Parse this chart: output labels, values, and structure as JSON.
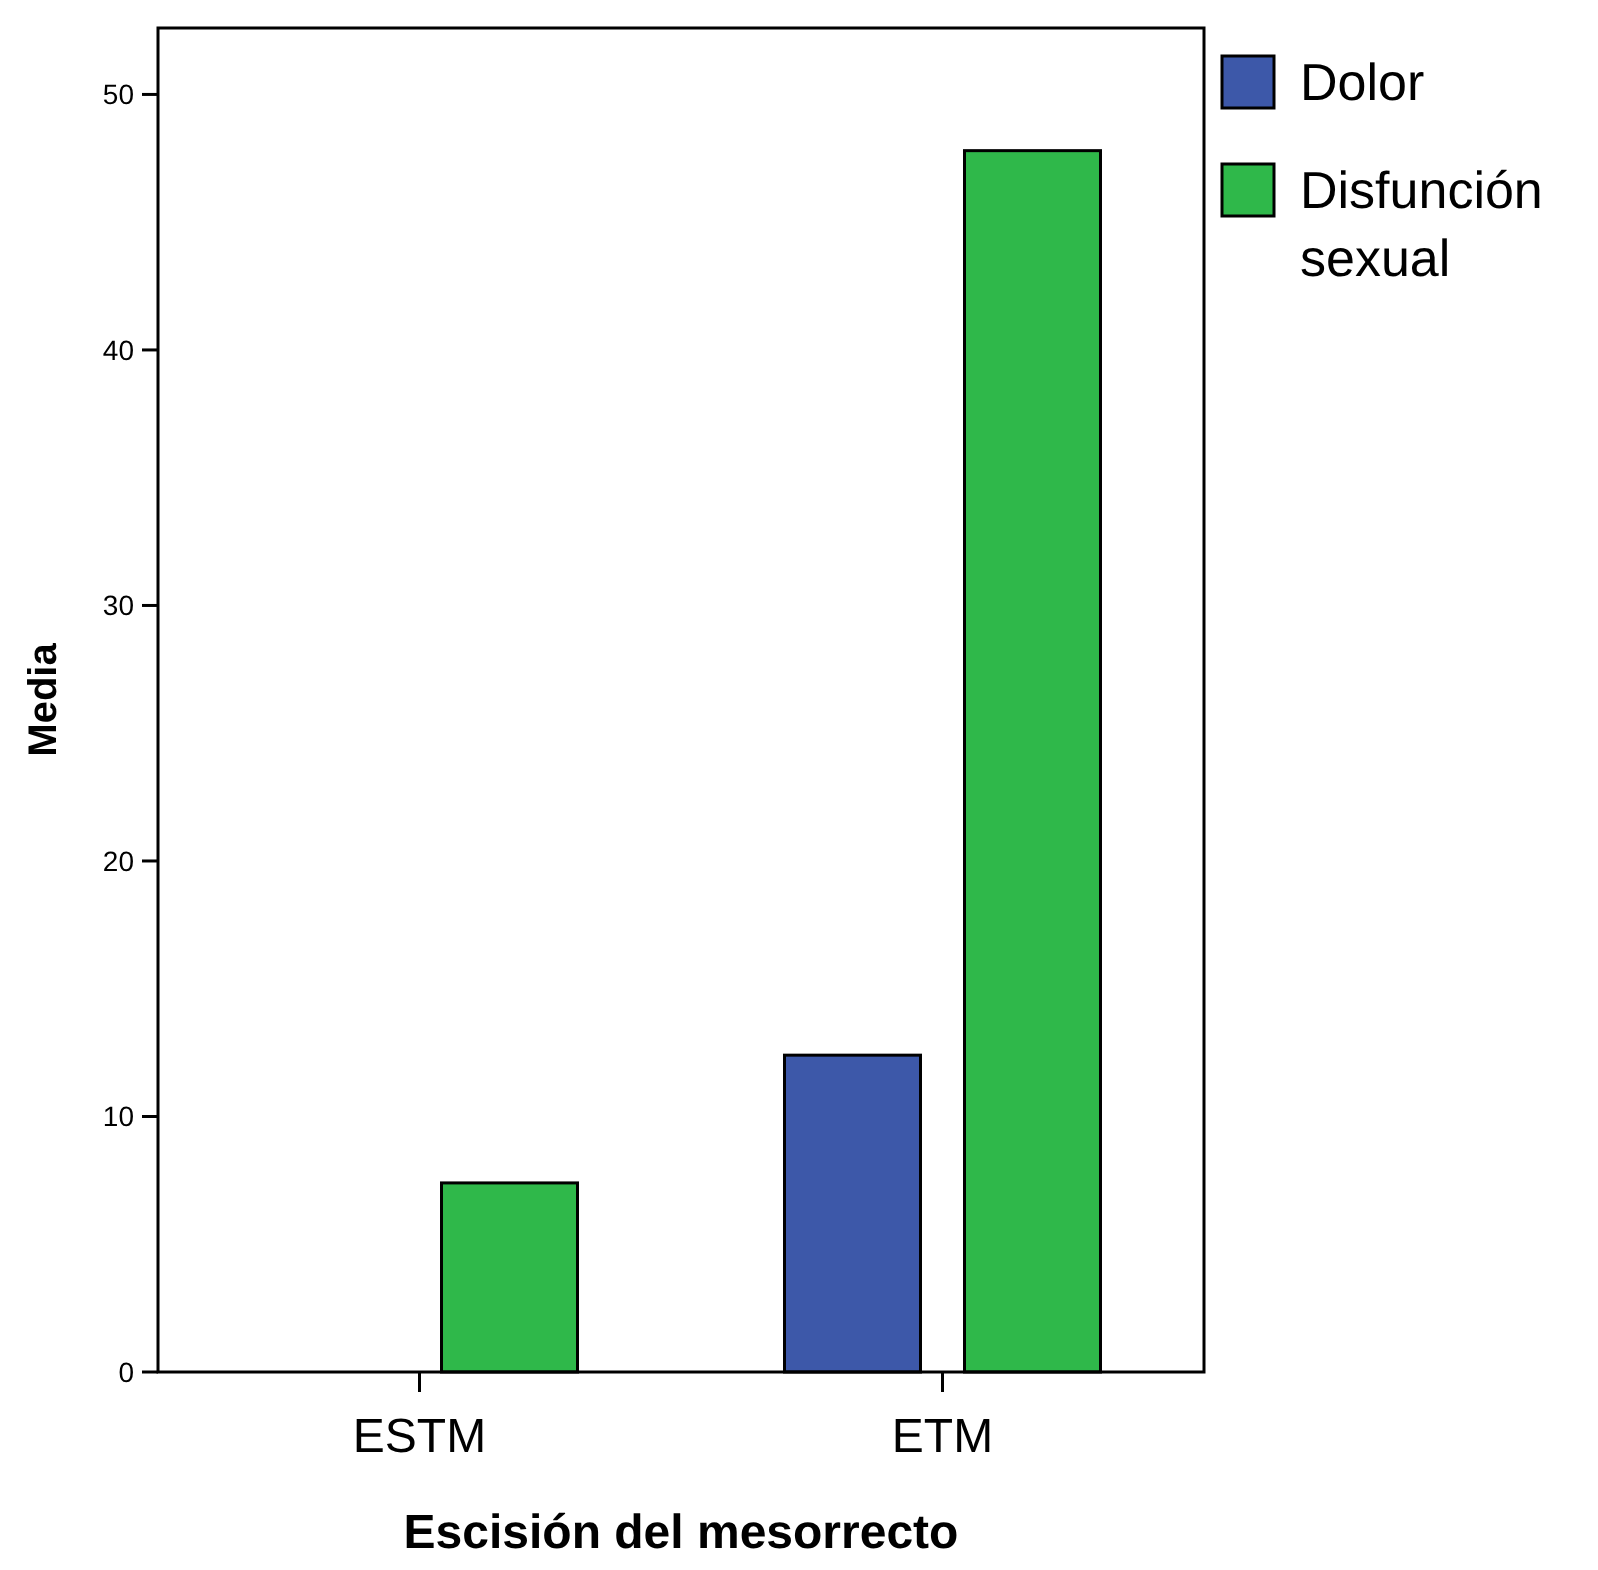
{
  "chart_data": {
    "type": "bar",
    "xlabel": "Escisión del mesorrecto",
    "ylabel": "Media",
    "categories": [
      "ESTM",
      "ETM"
    ],
    "series": [
      {
        "name": "Dolor",
        "color": "#3d58a9",
        "values": [
          0,
          12.4
        ]
      },
      {
        "name": "Disfunción sexual",
        "color": "#2fb84a",
        "values": [
          7.4,
          47.8
        ]
      }
    ],
    "ylim": [
      0,
      52.6
    ],
    "yticks": [
      0,
      10,
      20,
      30,
      40,
      50
    ],
    "grid": false,
    "legend": "right"
  }
}
